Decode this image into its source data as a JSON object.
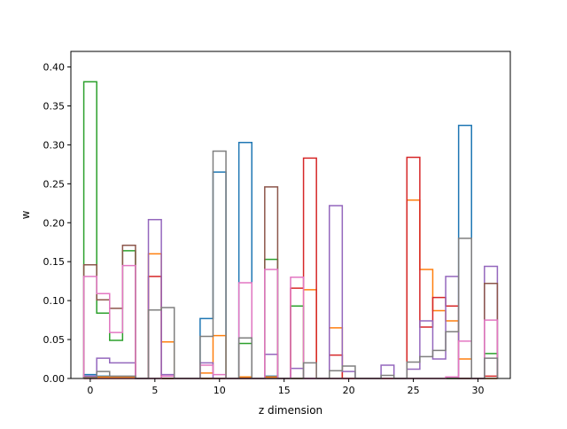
{
  "chart_data": {
    "type": "step",
    "title": "",
    "xlabel": "z dimension",
    "ylabel": "w",
    "xlim": [
      -1.5,
      32.5
    ],
    "ylim": [
      0.0,
      0.42
    ],
    "xticks": [
      0,
      5,
      10,
      15,
      20,
      25,
      30
    ],
    "yticks": [
      0.0,
      0.05,
      0.1,
      0.15,
      0.2,
      0.25,
      0.3,
      0.35,
      0.4
    ],
    "xtick_labels": [
      "0",
      "5",
      "10",
      "15",
      "20",
      "25",
      "30"
    ],
    "ytick_labels": [
      "0.00",
      "0.05",
      "0.10",
      "0.15",
      "0.20",
      "0.25",
      "0.30",
      "0.35",
      "0.40"
    ],
    "grid": false,
    "legend": "none",
    "x": [
      0,
      1,
      2,
      3,
      4,
      5,
      6,
      7,
      8,
      9,
      10,
      11,
      12,
      13,
      14,
      15,
      16,
      17,
      18,
      19,
      20,
      21,
      22,
      23,
      24,
      25,
      26,
      27,
      28,
      29,
      30,
      31
    ],
    "series": [
      {
        "color": "#1f77b4",
        "values": [
          0.005,
          0.003,
          0.002,
          0.002,
          0.0,
          0.0,
          0.0,
          0.0,
          0.0,
          0.077,
          0.265,
          0.0,
          0.303,
          0.0,
          0.003,
          0.0,
          0.0,
          0.0,
          0.0,
          0.0,
          0.0,
          0.0,
          0.0,
          0.0,
          0.0,
          0.0,
          0.0,
          0.0,
          0.0,
          0.325,
          0.0,
          0.0
        ]
      },
      {
        "color": "#ff7f0e",
        "values": [
          0.002,
          0.002,
          0.002,
          0.002,
          0.0,
          0.16,
          0.047,
          0.0,
          0.0,
          0.007,
          0.055,
          0.0,
          0.002,
          0.0,
          0.002,
          0.0,
          0.0,
          0.114,
          0.0,
          0.065,
          0.0,
          0.0,
          0.0,
          0.0,
          0.0,
          0.229,
          0.14,
          0.087,
          0.074,
          0.025,
          0.0,
          0.0
        ]
      },
      {
        "color": "#2ca02c",
        "values": [
          0.381,
          0.084,
          0.049,
          0.164,
          0.0,
          0.0,
          0.0,
          0.0,
          0.0,
          0.0,
          0.0,
          0.0,
          0.045,
          0.0,
          0.153,
          0.0,
          0.093,
          0.0,
          0.0,
          0.0,
          0.0,
          0.0,
          0.0,
          0.0,
          0.0,
          0.0,
          0.0,
          0.0,
          0.0,
          0.0,
          0.0,
          0.032
        ]
      },
      {
        "color": "#d62728",
        "values": [
          0.0,
          0.0,
          0.0,
          0.0,
          0.0,
          0.131,
          0.0,
          0.0,
          0.0,
          0.0,
          0.0,
          0.0,
          0.0,
          0.0,
          0.0,
          0.0,
          0.116,
          0.283,
          0.0,
          0.03,
          0.0,
          0.0,
          0.0,
          0.0,
          0.0,
          0.284,
          0.066,
          0.104,
          0.093,
          0.0,
          0.0,
          0.003
        ]
      },
      {
        "color": "#9467bd",
        "values": [
          0.003,
          0.026,
          0.02,
          0.02,
          0.0,
          0.204,
          0.005,
          0.0,
          0.0,
          0.02,
          0.0,
          0.0,
          0.0,
          0.0,
          0.031,
          0.0,
          0.013,
          0.0,
          0.0,
          0.222,
          0.009,
          0.0,
          0.0,
          0.017,
          0.0,
          0.012,
          0.074,
          0.025,
          0.131,
          0.0,
          0.0,
          0.144
        ]
      },
      {
        "color": "#8c564b",
        "values": [
          0.146,
          0.101,
          0.09,
          0.171,
          0.0,
          0.0,
          0.0,
          0.0,
          0.0,
          0.0,
          0.0,
          0.0,
          0.0,
          0.0,
          0.246,
          0.0,
          0.0,
          0.0,
          0.0,
          0.0,
          0.0,
          0.0,
          0.0,
          0.0,
          0.0,
          0.0,
          0.0,
          0.0,
          0.0,
          0.0,
          0.0,
          0.122
        ]
      },
      {
        "color": "#e377c2",
        "values": [
          0.131,
          0.109,
          0.059,
          0.145,
          0.0,
          0.0,
          0.003,
          0.0,
          0.0,
          0.017,
          0.005,
          0.0,
          0.123,
          0.0,
          0.14,
          0.0,
          0.13,
          0.0,
          0.0,
          0.0,
          0.0,
          0.0,
          0.0,
          0.0,
          0.0,
          0.0,
          0.0,
          0.0,
          0.002,
          0.048,
          0.0,
          0.075
        ]
      },
      {
        "color": "#7f7f7f",
        "values": [
          0.001,
          0.009,
          0.003,
          0.003,
          0.0,
          0.088,
          0.091,
          0.0,
          0.0,
          0.054,
          0.292,
          0.0,
          0.052,
          0.0,
          0.0,
          0.0,
          0.0,
          0.02,
          0.0,
          0.01,
          0.016,
          0.0,
          0.0,
          0.004,
          0.0,
          0.021,
          0.028,
          0.036,
          0.06,
          0.18,
          0.0,
          0.026
        ]
      }
    ]
  }
}
